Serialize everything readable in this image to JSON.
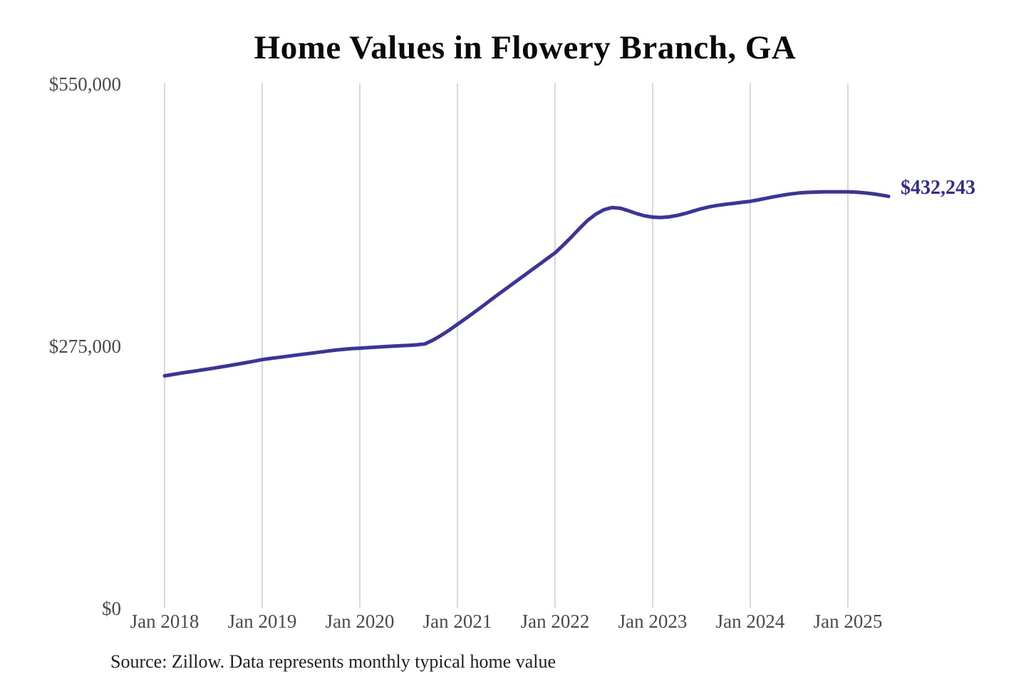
{
  "title": "Home Values in Flowery Branch, GA",
  "annotation": {
    "end_value_label": "$432,243"
  },
  "source_note": "Source: Zillow. Data represents monthly typical home value",
  "colors": {
    "line": "#3b3596",
    "end_label": "#332e8a",
    "gridline": "#cbcbcb",
    "tick_label": "#4a4a4a",
    "title": "#0a0a0a",
    "source": "#1f1f1f"
  },
  "y_axis": {
    "ticks": [
      {
        "label": "$550,000",
        "value": 550000
      },
      {
        "label": "$275,000",
        "value": 275000
      },
      {
        "label": "$0",
        "value": 0
      }
    ]
  },
  "x_axis": {
    "ticks": [
      "Jan 2018",
      "Jan 2019",
      "Jan 2020",
      "Jan 2021",
      "Jan 2022",
      "Jan 2023",
      "Jan 2024",
      "Jan 2025"
    ]
  },
  "chart_data": {
    "type": "line",
    "title": "Home Values in Flowery Branch, GA",
    "xlabel": "",
    "ylabel": "",
    "ylim": [
      0,
      550000
    ],
    "grid": "vertical-only",
    "legend": "none",
    "x_interval": "monthly",
    "x_start": "2018-01",
    "x_end": "2025-06",
    "x_tick_labels": [
      "Jan 2018",
      "Jan 2019",
      "Jan 2020",
      "Jan 2021",
      "Jan 2022",
      "Jan 2023",
      "Jan 2024",
      "Jan 2025"
    ],
    "y_tick_labels": [
      "$0",
      "$275,000",
      "$550,000"
    ],
    "latest_point": {
      "label": "$432,243",
      "value": 432243,
      "month": "2025-06"
    },
    "series": [
      {
        "name": "Typical home value",
        "color": "#3b3596",
        "values": [
          244000,
          245400,
          246800,
          248100,
          249400,
          250700,
          252000,
          253400,
          254800,
          256300,
          257800,
          259400,
          261000,
          262200,
          263300,
          264400,
          265500,
          266600,
          267700,
          268800,
          269900,
          271000,
          271800,
          272500,
          273000,
          273600,
          274100,
          274600,
          275100,
          275500,
          276000,
          276500,
          277500,
          281500,
          286500,
          292000,
          298000,
          304000,
          310200,
          316500,
          323000,
          329300,
          335500,
          341800,
          348000,
          354300,
          360500,
          366800,
          373000,
          381000,
          389500,
          398500,
          407000,
          413500,
          418200,
          420500,
          419800,
          417200,
          414200,
          411800,
          410500,
          410000,
          410700,
          412200,
          414300,
          416800,
          419300,
          421300,
          422800,
          423900,
          424900,
          426000,
          427000,
          428600,
          430300,
          432000,
          433500,
          434800,
          435800,
          436400,
          436700,
          436900,
          437000,
          437000,
          437000,
          436700,
          436000,
          435000,
          433700,
          432243
        ]
      }
    ]
  }
}
